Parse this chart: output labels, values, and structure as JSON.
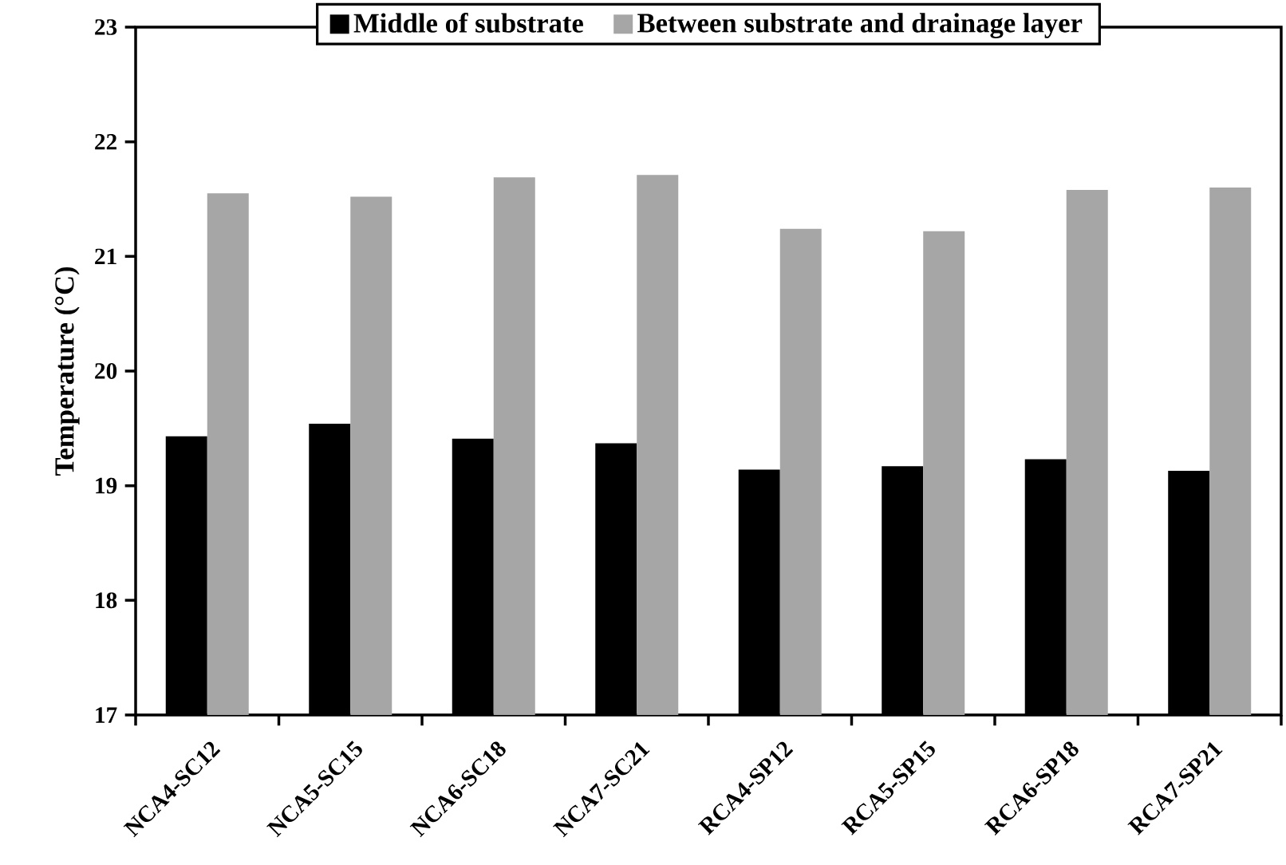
{
  "chart_data": {
    "type": "bar",
    "ylabel": "Temperature (°C)",
    "categories": [
      "NCA4-SC12",
      "NCA5-SC15",
      "NCA6-SC18",
      "NCA7-SC21",
      "RCA4-SP12",
      "RCA5-SP15",
      "RCA6-SP18",
      "RCA7-SP21"
    ],
    "series": [
      {
        "name": "Middle of substrate",
        "color": "#000000",
        "values": [
          19.43,
          19.54,
          19.41,
          19.37,
          19.14,
          19.17,
          19.23,
          19.13
        ]
      },
      {
        "name": "Between substrate and drainage layer",
        "color": "#a6a6a6",
        "values": [
          21.55,
          21.52,
          21.69,
          21.71,
          21.24,
          21.22,
          21.58,
          21.6
        ]
      }
    ],
    "ylim": [
      17,
      23
    ],
    "yticks": [
      17,
      18,
      19,
      20,
      21,
      22,
      23
    ],
    "grid": false,
    "legend": "top"
  }
}
